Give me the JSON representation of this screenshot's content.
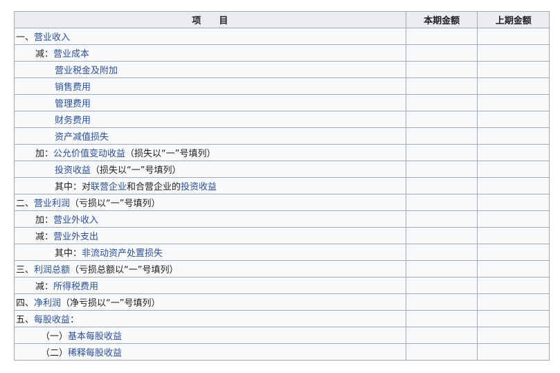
{
  "header": {
    "item": "项　　目",
    "current": "本期金额",
    "previous": "上期金额"
  },
  "link_color": "#2a4f9a",
  "rows": [
    {
      "level": 0,
      "segments": [
        {
          "t": "一、"
        },
        {
          "t": "营业收入",
          "link": true
        }
      ]
    },
    {
      "level": 1,
      "segments": [
        {
          "t": "减："
        },
        {
          "t": "营业成本",
          "link": true
        }
      ]
    },
    {
      "level": 2,
      "segments": [
        {
          "t": "营业税金及附加",
          "link": true
        }
      ]
    },
    {
      "level": 2,
      "segments": [
        {
          "t": "销售费用",
          "link": true
        }
      ]
    },
    {
      "level": 2,
      "segments": [
        {
          "t": "管理费用",
          "link": true
        }
      ]
    },
    {
      "level": 2,
      "segments": [
        {
          "t": "财务费用",
          "link": true
        }
      ]
    },
    {
      "level": 2,
      "segments": [
        {
          "t": "资产减值损失",
          "link": true
        }
      ]
    },
    {
      "level": 1,
      "segments": [
        {
          "t": "加："
        },
        {
          "t": "公允价值变动收益",
          "link": true
        },
        {
          "t": "（损失以“一”号填列）"
        }
      ]
    },
    {
      "level": 2,
      "segments": [
        {
          "t": "投资收益",
          "link": true
        },
        {
          "t": "（损失以“一”号填列）"
        }
      ]
    },
    {
      "level": 2,
      "segments": [
        {
          "t": "其中：对"
        },
        {
          "t": "联营企业",
          "link": true
        },
        {
          "t": "和合营企业的"
        },
        {
          "t": "投资收益",
          "link": true
        }
      ]
    },
    {
      "level": 0,
      "segments": [
        {
          "t": "二、"
        },
        {
          "t": "营业利润",
          "link": true
        },
        {
          "t": "（亏损以“一”号填列）"
        }
      ]
    },
    {
      "level": 1,
      "segments": [
        {
          "t": "加："
        },
        {
          "t": "营业外收入",
          "link": true
        }
      ]
    },
    {
      "level": 1,
      "segments": [
        {
          "t": "减："
        },
        {
          "t": "营业外支出",
          "link": true
        }
      ]
    },
    {
      "level": 2,
      "segments": [
        {
          "t": "其中："
        },
        {
          "t": "非流动资产处置损失",
          "link": true
        }
      ]
    },
    {
      "level": 0,
      "segments": [
        {
          "t": "三、"
        },
        {
          "t": "利润总额",
          "link": true
        },
        {
          "t": "（亏损总额以“一”号填列）"
        }
      ]
    },
    {
      "level": 1,
      "segments": [
        {
          "t": "减："
        },
        {
          "t": "所得税费用",
          "link": true
        }
      ]
    },
    {
      "level": 0,
      "segments": [
        {
          "t": "四、"
        },
        {
          "t": "净利润",
          "link": true
        },
        {
          "t": "（净亏损以“一”号填列）"
        }
      ]
    },
    {
      "level": 0,
      "segments": [
        {
          "t": "五、"
        },
        {
          "t": "每股收益",
          "link": true
        },
        {
          "t": "："
        }
      ]
    },
    {
      "level": 15,
      "segments": [
        {
          "t": "（一）"
        },
        {
          "t": "基本每股收益",
          "link": true
        }
      ]
    },
    {
      "level": 15,
      "segments": [
        {
          "t": "（二）"
        },
        {
          "t": "稀释每股收益",
          "link": true
        }
      ]
    }
  ]
}
